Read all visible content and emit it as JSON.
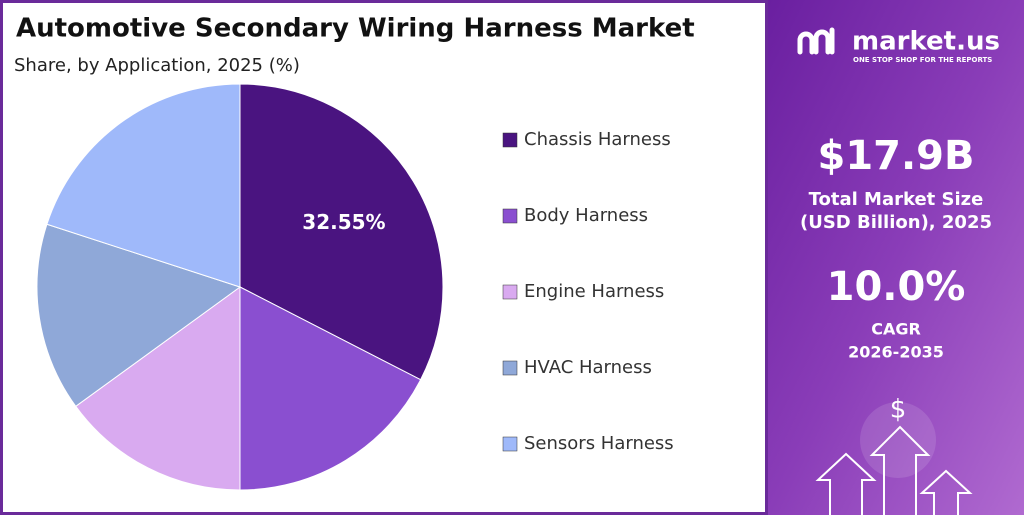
{
  "chart_data": {
    "type": "pie",
    "title": "Automotive Secondary Wiring Harness Market",
    "subtitle": "Share, by Application, 2025 (%)",
    "categories": [
      "Chassis Harness",
      "Body Harness",
      "Engine Harness",
      "HVAC Harness",
      "Sensors Harness"
    ],
    "values": [
      32.55,
      17.45,
      15,
      15,
      20
    ],
    "value_labels": [
      "32.55%",
      null,
      null,
      null,
      null
    ],
    "colors": [
      "#4a1480",
      "#8a4fd0",
      "#d9aaf0",
      "#8fa8d8",
      "#9fb9fa"
    ],
    "legend": "right"
  },
  "panel": {
    "brand": "market.us",
    "tagline": "ONE STOP SHOP FOR THE REPORTS",
    "market_size": "$17.9B",
    "market_size_label": [
      "Total Market Size",
      "(USD Billion), 2025"
    ],
    "cagr": "10.0%",
    "cagr_label": [
      "CAGR",
      "2026-2035"
    ],
    "icon": "$"
  }
}
